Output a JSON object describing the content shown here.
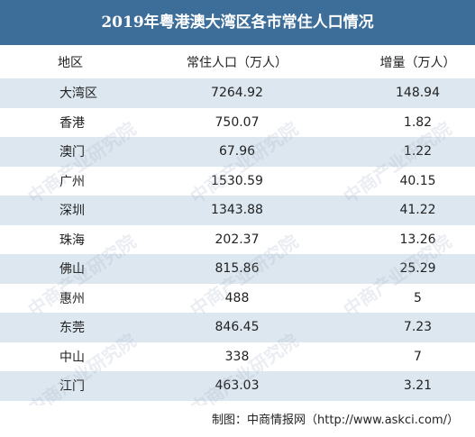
{
  "title": "2019年粤港澳大湾区各市常住人口情况",
  "colors": {
    "header_bar": "#3d6e9a",
    "row_alt": "#dde7f0"
  },
  "table": {
    "headers": [
      "地区",
      "常住人口（万人）",
      "增量（万人）"
    ],
    "rows": [
      [
        "大湾区",
        "7264.92",
        "148.94"
      ],
      [
        "香港",
        "750.07",
        "1.82"
      ],
      [
        "澳门",
        "67.96",
        "1.22"
      ],
      [
        "广州",
        "1530.59",
        "40.15"
      ],
      [
        "深圳",
        "1343.88",
        "41.22"
      ],
      [
        "珠海",
        "202.37",
        "13.26"
      ],
      [
        "佛山",
        "815.86",
        "25.29"
      ],
      [
        "惠州",
        "488",
        "5"
      ],
      [
        "东莞",
        "846.45",
        "7.23"
      ],
      [
        "中山",
        "338",
        "7"
      ],
      [
        "江门",
        "463.03",
        "3.21"
      ]
    ]
  },
  "footer": "制图：中商情报网（http://www.askci.com/）",
  "watermark": "中商产业研究院"
}
